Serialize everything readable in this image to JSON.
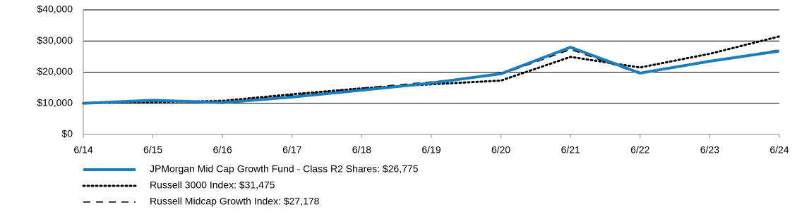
{
  "chart_data": {
    "type": "line",
    "categories": [
      "6/14",
      "6/15",
      "6/16",
      "6/17",
      "6/18",
      "6/19",
      "6/20",
      "6/21",
      "6/22",
      "6/23",
      "6/24"
    ],
    "series": [
      {
        "name": "JPMorgan Mid Cap Growth Fund - Class R2 Shares: $26,775",
        "color": "#1a7dc0",
        "style": "solid",
        "values": [
          10000,
          11000,
          10200,
          12000,
          14200,
          16500,
          19500,
          28000,
          19700,
          23500,
          26775
        ]
      },
      {
        "name": "Russell 3000 Index: $31,475",
        "color": "#000000",
        "style": "dotted",
        "values": [
          10000,
          10400,
          10800,
          12900,
          14800,
          16100,
          17300,
          24900,
          21500,
          25900,
          31475
        ]
      },
      {
        "name": "Russell Midcap Growth Index: $27,178",
        "color": "#000000",
        "style": "dashed",
        "values": [
          10000,
          10700,
          10400,
          12600,
          14900,
          16900,
          19200,
          27300,
          19400,
          23500,
          27178
        ]
      }
    ],
    "ylim": [
      0,
      40000
    ],
    "yticks": [
      {
        "value": 0,
        "label": "$0"
      },
      {
        "value": 10000,
        "label": "$10,000"
      },
      {
        "value": 20000,
        "label": "$20,000"
      },
      {
        "value": 30000,
        "label": "$30,000"
      },
      {
        "value": 40000,
        "label": "$40,000"
      }
    ],
    "grid": true
  }
}
